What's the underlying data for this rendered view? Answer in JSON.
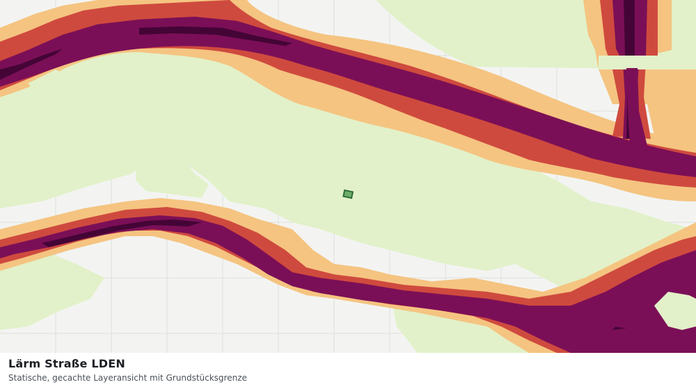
{
  "map": {
    "layer_name": "Lärm Straße LDEN",
    "noise_class_colors": {
      "class_1": "#e2f1c9",
      "class_2": "#f5c481",
      "class_3": "#cf4a3e",
      "class_4": "#7b0f57",
      "class_5": "#440536"
    },
    "parcel_color": "#2f6b3a",
    "basemap_color": "#f3f4f2"
  },
  "caption": {
    "title": "Lärm Straße LDEN",
    "subtitle": "Statische, gecachte Layeransicht mit Grundstücksgrenze"
  }
}
